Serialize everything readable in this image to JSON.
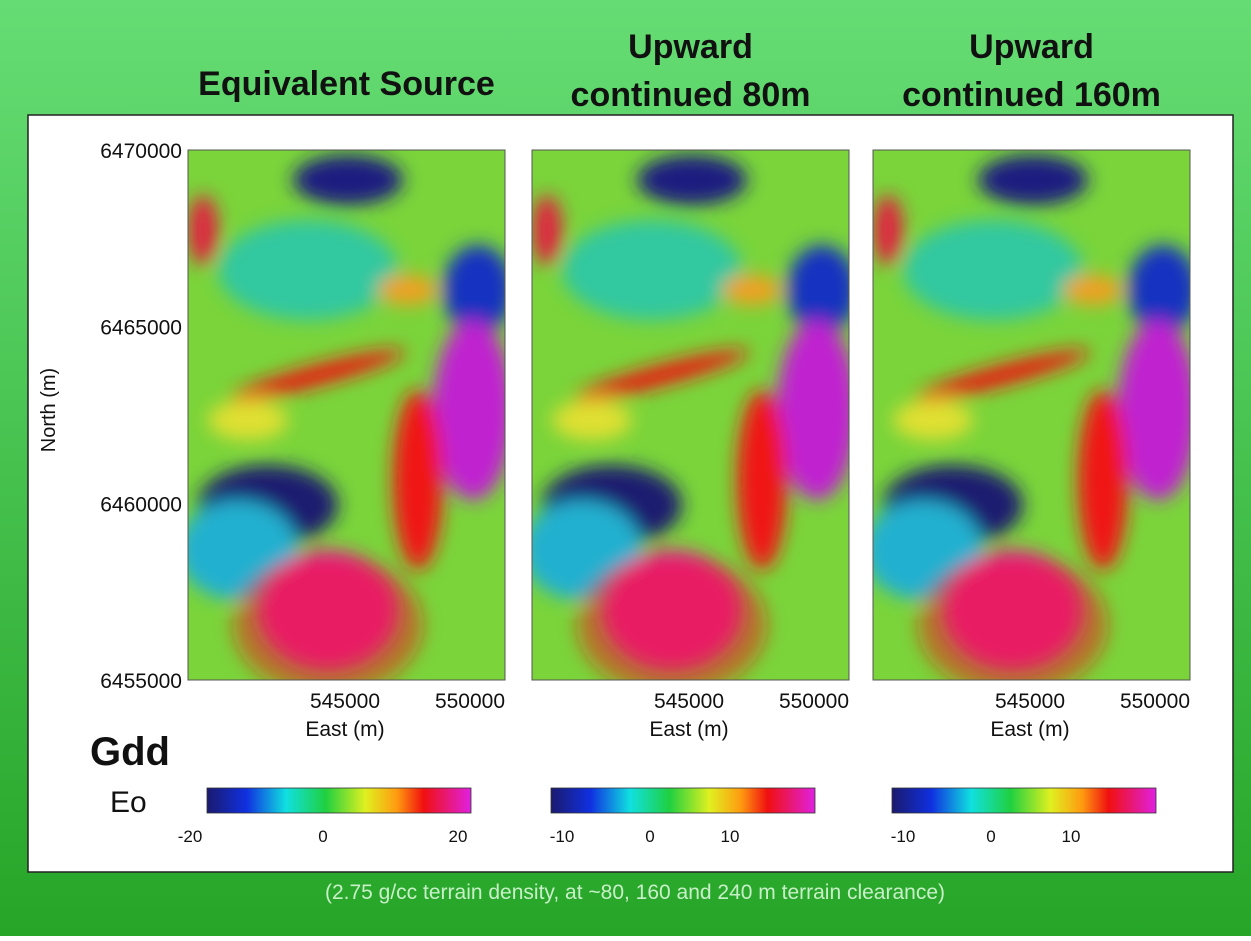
{
  "panels": [
    {
      "title_lines": [
        "Equivalent Source"
      ],
      "x_ticks": [
        "545000",
        "550000"
      ],
      "x_label": "East (m)",
      "colorbar_ticks": [
        "-20",
        "0",
        "20"
      ]
    },
    {
      "title_lines": [
        "Upward",
        "continued 80m"
      ],
      "x_ticks": [
        "545000",
        "550000"
      ],
      "x_label": "East (m)",
      "colorbar_ticks": [
        "-10",
        "0",
        "10"
      ]
    },
    {
      "title_lines": [
        "Upward",
        "continued 160m"
      ],
      "x_ticks": [
        "545000",
        "550000"
      ],
      "x_label": "East (m)",
      "colorbar_ticks": [
        "-10",
        "0",
        "10"
      ]
    }
  ],
  "y_axis": {
    "label": "North (m)",
    "ticks": [
      "6470000",
      "6465000",
      "6460000",
      "6455000"
    ]
  },
  "legend": {
    "title": "Gdd",
    "subtitle": "Eo"
  },
  "footer": "(2.75 g/cc terrain density, at ~80, 160 and 240 m terrain clearance)"
}
